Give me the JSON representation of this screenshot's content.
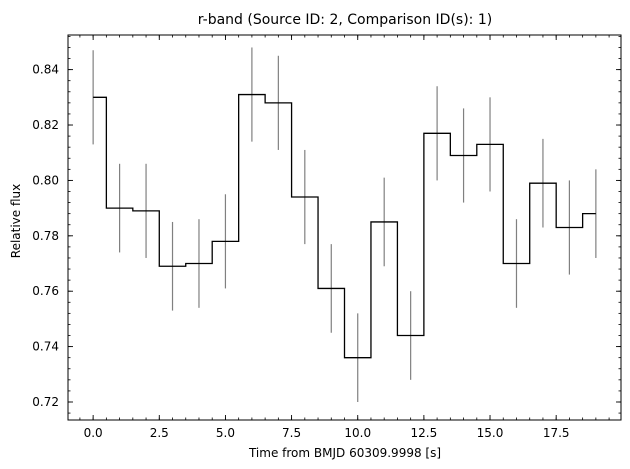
{
  "chart_data": {
    "type": "line",
    "title": "r-band (Source ID: 2, Comparison ID(s): 1)",
    "xlabel": "Time from BMJD 60309.9998 [s]",
    "ylabel": "Relative flux",
    "xlim": [
      -0.95,
      19.95
    ],
    "ylim": [
      0.7135,
      0.8525
    ],
    "x_ticks": [
      0.0,
      2.5,
      5.0,
      7.5,
      10.0,
      12.5,
      15.0,
      17.5
    ],
    "x_tick_labels": [
      "0.0",
      "2.5",
      "5.0",
      "7.5",
      "10.0",
      "12.5",
      "15.0",
      "17.5"
    ],
    "y_ticks": [
      0.72,
      0.74,
      0.76,
      0.78,
      0.8,
      0.82,
      0.84
    ],
    "y_tick_labels": [
      "0.72",
      "0.74",
      "0.76",
      "0.78",
      "0.80",
      "0.82",
      "0.84"
    ],
    "step_style": "mid",
    "series": [
      {
        "x": [
          0,
          1,
          2,
          3,
          4,
          5,
          6,
          7,
          8,
          9,
          10,
          11,
          12,
          13,
          14,
          15,
          16,
          17,
          18,
          19
        ],
        "y": [
          0.83,
          0.79,
          0.789,
          0.769,
          0.77,
          0.778,
          0.831,
          0.828,
          0.794,
          0.761,
          0.736,
          0.785,
          0.744,
          0.817,
          0.809,
          0.813,
          0.77,
          0.799,
          0.783,
          0.788
        ],
        "yerr": [
          0.017,
          0.016,
          0.017,
          0.016,
          0.016,
          0.017,
          0.017,
          0.017,
          0.017,
          0.016,
          0.016,
          0.016,
          0.016,
          0.017,
          0.017,
          0.017,
          0.016,
          0.016,
          0.017,
          0.016
        ],
        "color": "#000000",
        "errorbar_color": "#808080"
      }
    ],
    "grid": false
  }
}
